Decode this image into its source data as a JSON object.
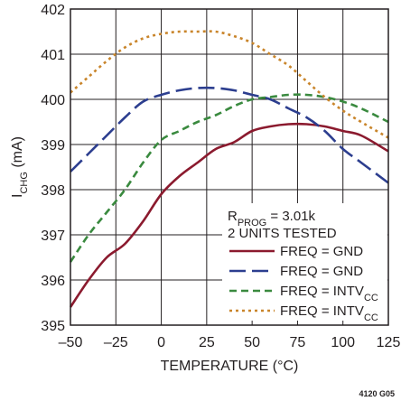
{
  "chart_data": {
    "type": "line",
    "xlabel": "TEMPERATURE (°C)",
    "ylabel_main": "I",
    "ylabel_sub": "CHG",
    "ylabel_unit": " (mA)",
    "xlim": [
      -50,
      125
    ],
    "ylim": [
      395,
      402
    ],
    "x_ticks": [
      -50,
      -25,
      0,
      25,
      50,
      75,
      100,
      125
    ],
    "x_tick_labels": [
      "–50",
      "–25",
      "0",
      "25",
      "50",
      "75",
      "100",
      "125"
    ],
    "y_ticks": [
      395,
      396,
      397,
      398,
      399,
      400,
      401,
      402
    ],
    "grid": true,
    "legend_position": "lower-right",
    "legend_header": {
      "line1_main": "R",
      "line1_sub": "PROG",
      "line1_rest": " = 3.01k",
      "line2": "2 UNITS TESTED"
    },
    "series": [
      {
        "name": "FREQ = GND",
        "name_main": "FREQ = GND",
        "name_sub": "",
        "color": "#8b1a2e",
        "dash": "solid",
        "x": [
          -50,
          -40,
          -30,
          -20,
          -10,
          0,
          10,
          20,
          30,
          40,
          50,
          60,
          70,
          80,
          90,
          100,
          110,
          125
        ],
        "y": [
          395.4,
          396.0,
          396.5,
          396.8,
          397.3,
          397.9,
          398.3,
          398.6,
          398.9,
          399.05,
          399.3,
          399.4,
          399.45,
          399.45,
          399.4,
          399.3,
          399.2,
          398.85
        ]
      },
      {
        "name": "FREQ = GND",
        "name_main": "FREQ = GND",
        "name_sub": "",
        "color": "#2c3e8f",
        "dash": "long",
        "x": [
          -50,
          -40,
          -30,
          -20,
          -10,
          0,
          10,
          20,
          30,
          40,
          50,
          60,
          70,
          80,
          90,
          100,
          110,
          125
        ],
        "y": [
          398.4,
          398.8,
          399.2,
          399.6,
          399.95,
          400.1,
          400.2,
          400.25,
          400.25,
          400.2,
          400.1,
          400.0,
          399.8,
          399.6,
          399.3,
          398.9,
          398.6,
          398.15
        ]
      },
      {
        "name": "FREQ = INTVCC",
        "name_main": "FREQ = INTV",
        "name_sub": "CC",
        "color": "#3a8a3f",
        "dash": "medium",
        "x": [
          -50,
          -40,
          -30,
          -20,
          -10,
          0,
          10,
          20,
          30,
          40,
          50,
          60,
          70,
          80,
          90,
          100,
          110,
          125
        ],
        "y": [
          396.4,
          397.0,
          397.5,
          398.0,
          398.6,
          399.1,
          399.3,
          399.5,
          399.65,
          399.85,
          400.0,
          400.05,
          400.1,
          400.1,
          400.05,
          399.95,
          399.8,
          399.5
        ]
      },
      {
        "name": "FREQ = INTVCC",
        "name_main": "FREQ = INTV",
        "name_sub": "CC",
        "color": "#c9852b",
        "dash": "dotted",
        "x": [
          -50,
          -40,
          -30,
          -20,
          -10,
          0,
          10,
          20,
          30,
          40,
          50,
          60,
          70,
          80,
          90,
          100,
          110,
          125
        ],
        "y": [
          400.15,
          400.5,
          400.85,
          401.15,
          401.35,
          401.45,
          401.5,
          401.5,
          401.5,
          401.4,
          401.25,
          401.0,
          400.75,
          400.4,
          400.05,
          399.75,
          399.5,
          399.15
        ]
      }
    ]
  },
  "figure_id": "4120 G05"
}
